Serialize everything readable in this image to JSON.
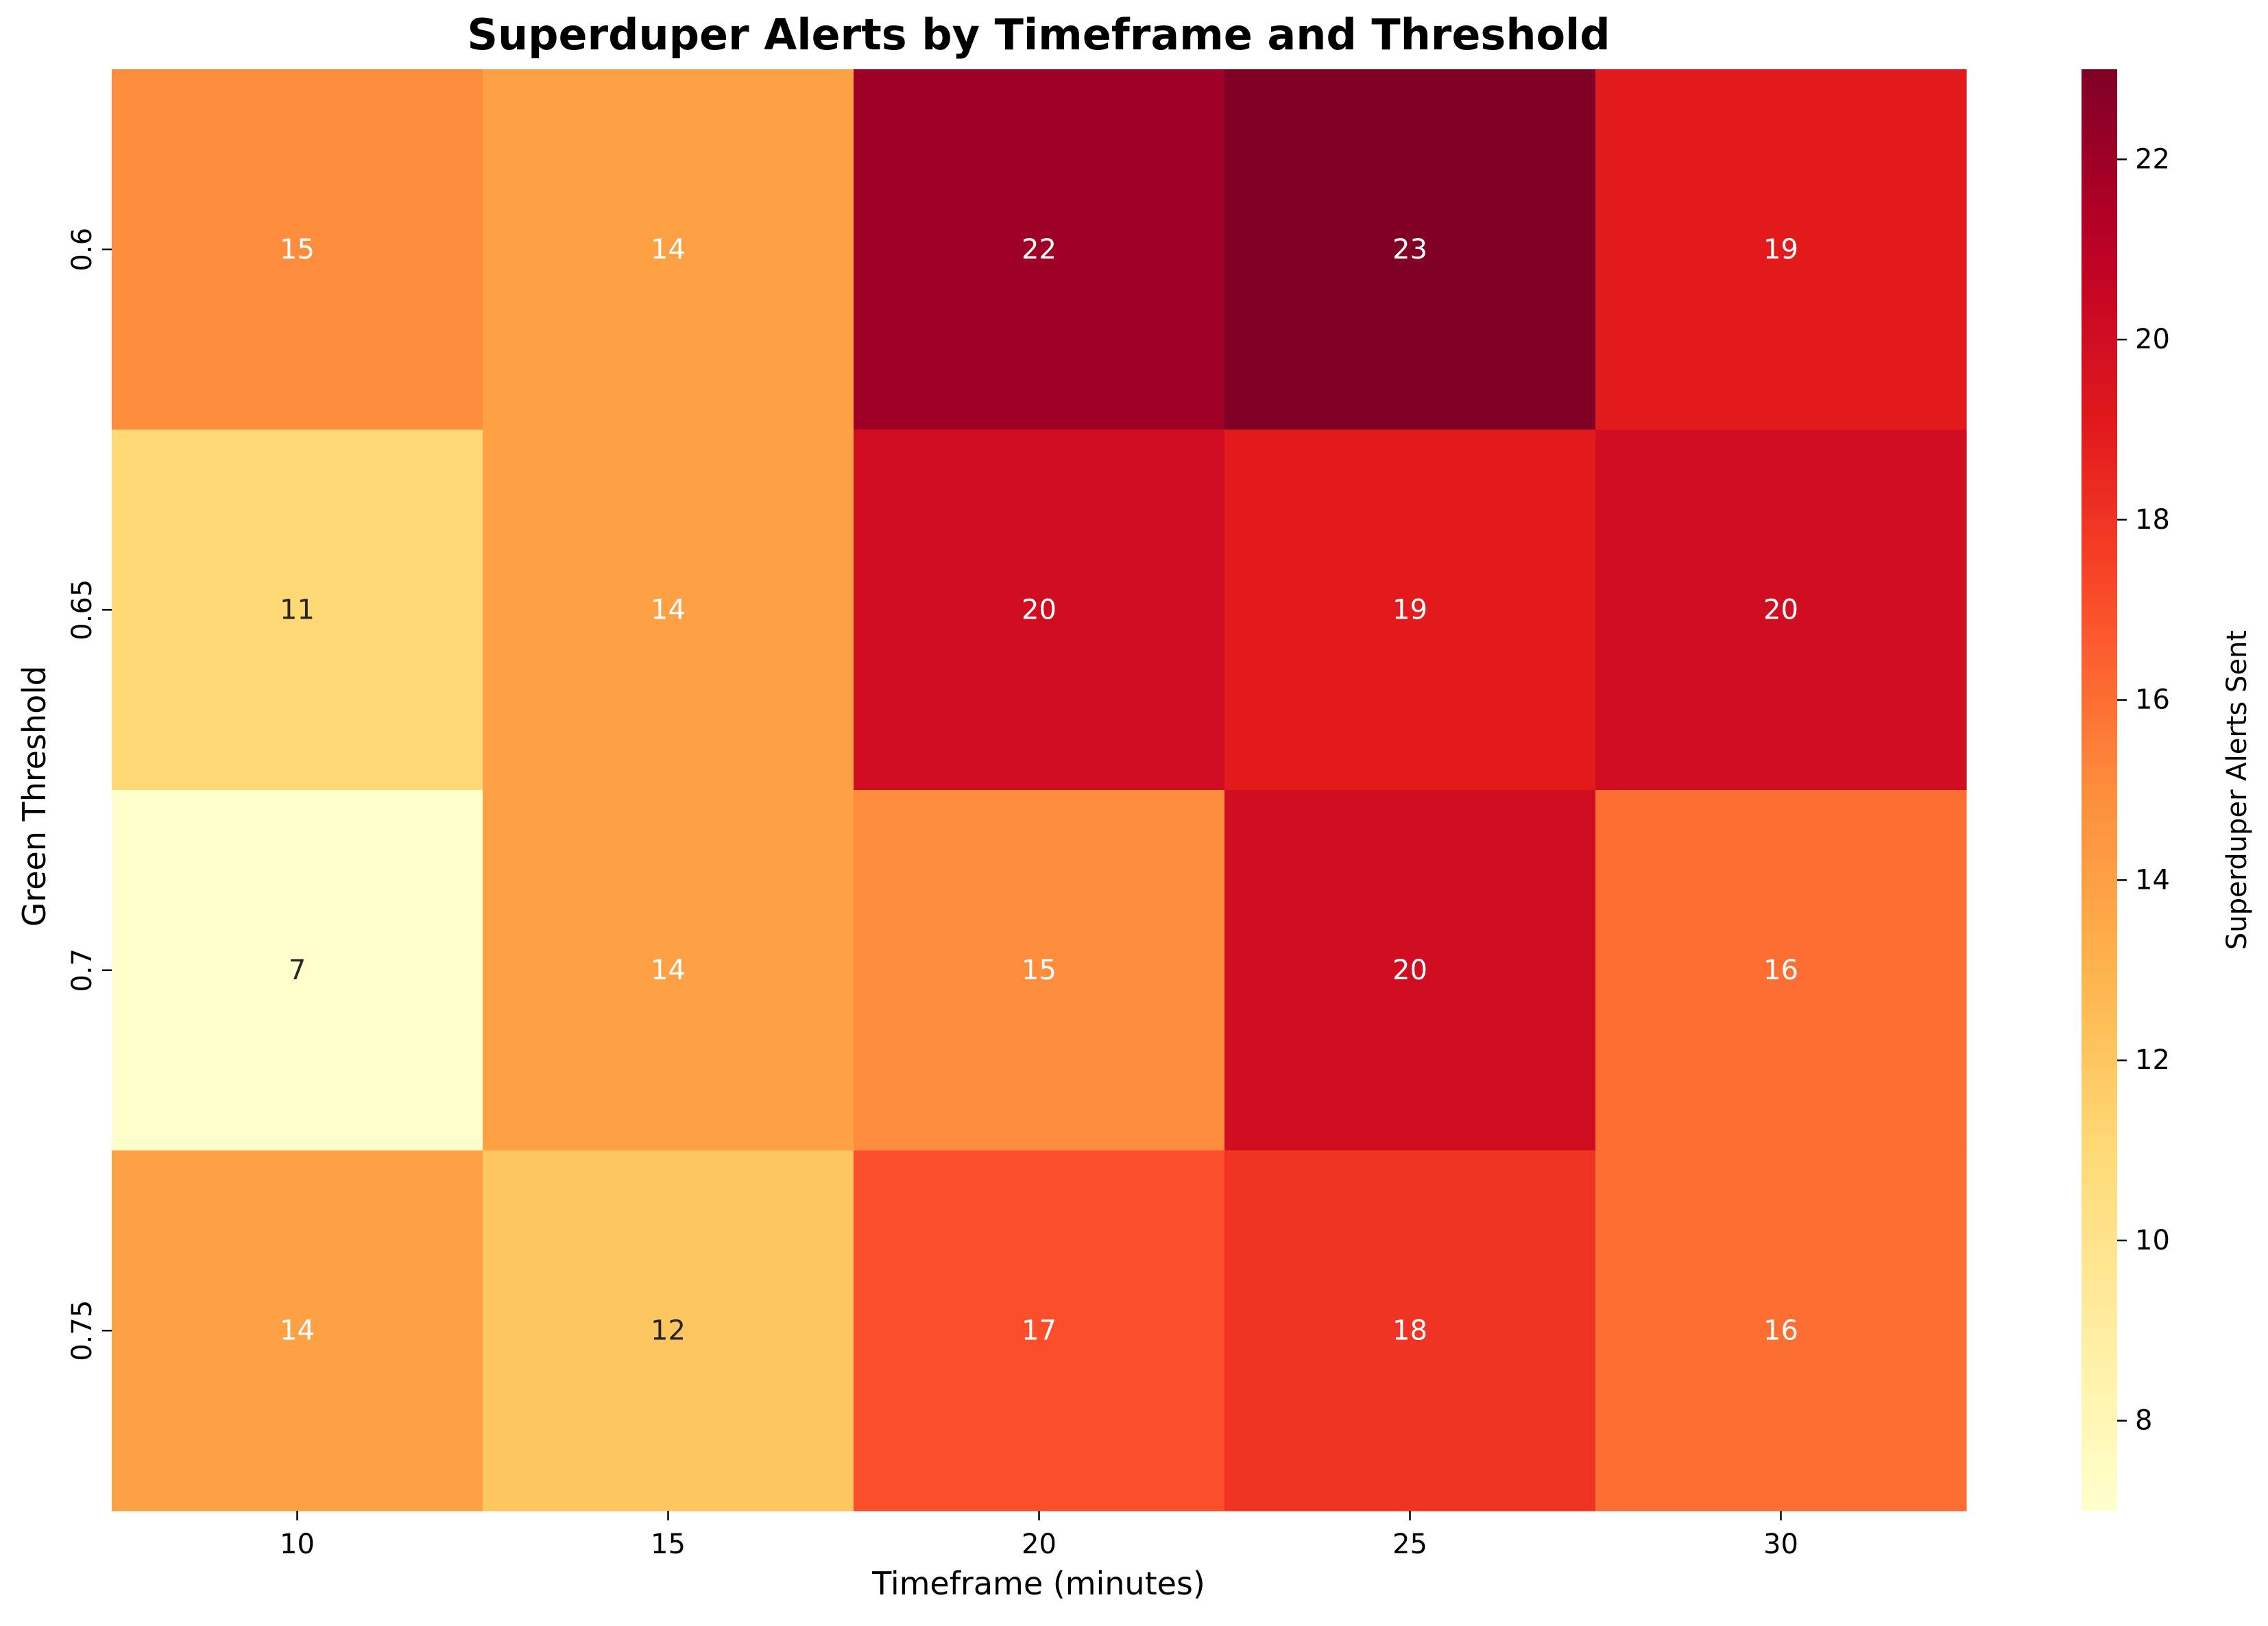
{
  "chart_data": {
    "type": "heatmap",
    "title": "Superduper Alerts by Timeframe and Threshold",
    "xlabel": "Timeframe (minutes)",
    "ylabel": "Green Threshold",
    "x_categories": [
      "10",
      "15",
      "20",
      "25",
      "30"
    ],
    "y_categories": [
      "0.6",
      "0.65",
      "0.7",
      "0.75"
    ],
    "values": [
      [
        15,
        14,
        22,
        23,
        19
      ],
      [
        11,
        14,
        20,
        19,
        20
      ],
      [
        7,
        14,
        15,
        20,
        16
      ],
      [
        14,
        12,
        17,
        18,
        16
      ]
    ],
    "colormap": "YlOrRd",
    "value_range": [
      7,
      23
    ],
    "colorbar": {
      "label": "Superduper Alerts Sent",
      "ticks": [
        8,
        10,
        12,
        14,
        16,
        18,
        20,
        22
      ]
    },
    "annotations": true,
    "grid": false
  }
}
